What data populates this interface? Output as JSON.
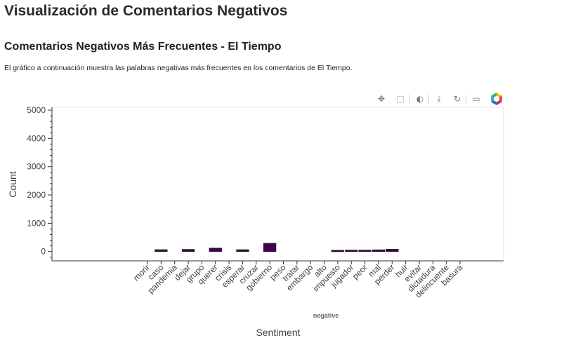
{
  "page": {
    "title": "Visualización de Comentarios Negativos",
    "subtitle": "Comentarios Negativos Más Frecuentes - El Tiempo",
    "description": "El gráfico a continuación muestra las palabras negativas más frecuentes en los comentarios de El Tiempo."
  },
  "toolbar": {
    "tools": [
      {
        "name": "pan-tool-icon",
        "glyph": "✥",
        "active": true
      },
      {
        "name": "box-zoom-tool-icon",
        "glyph": "⬚",
        "active": false
      },
      {
        "name": "wheel-zoom-tool-icon",
        "glyph": "◐",
        "active": true
      },
      {
        "name": "save-tool-icon",
        "glyph": "⤓",
        "active": false
      },
      {
        "name": "reset-tool-icon",
        "glyph": "↻",
        "active": false
      },
      {
        "name": "hover-tool-icon",
        "glyph": "▭",
        "active": true
      },
      {
        "name": "bokeh-logo-icon",
        "glyph": "",
        "active": false
      }
    ]
  },
  "chart_data": {
    "type": "bar",
    "title": "",
    "xlabel": "Sentiment",
    "ylabel": "Count",
    "group_label": "negative",
    "categories": [
      "morir",
      "caso",
      "pandemia",
      "dejar",
      "grupo",
      "querer",
      "crisis",
      "esperar",
      "cruzar",
      "gobierno",
      "peso",
      "tratar",
      "embargo",
      "alto",
      "impuesto",
      "jugador",
      "peor",
      "mal",
      "perder",
      "huir",
      "evitar",
      "dictadura",
      "delincuente",
      "basura"
    ],
    "values": [
      0,
      65,
      0,
      75,
      0,
      120,
      0,
      65,
      0,
      290,
      0,
      0,
      0,
      0,
      45,
      50,
      50,
      60,
      80,
      0,
      0,
      0,
      0,
      0
    ],
    "ylim": [
      -330,
      5100
    ],
    "yticks": [
      0,
      1000,
      2000,
      3000,
      4000,
      5000
    ],
    "bar_color": "#440154",
    "grid": false,
    "legend": "none"
  }
}
